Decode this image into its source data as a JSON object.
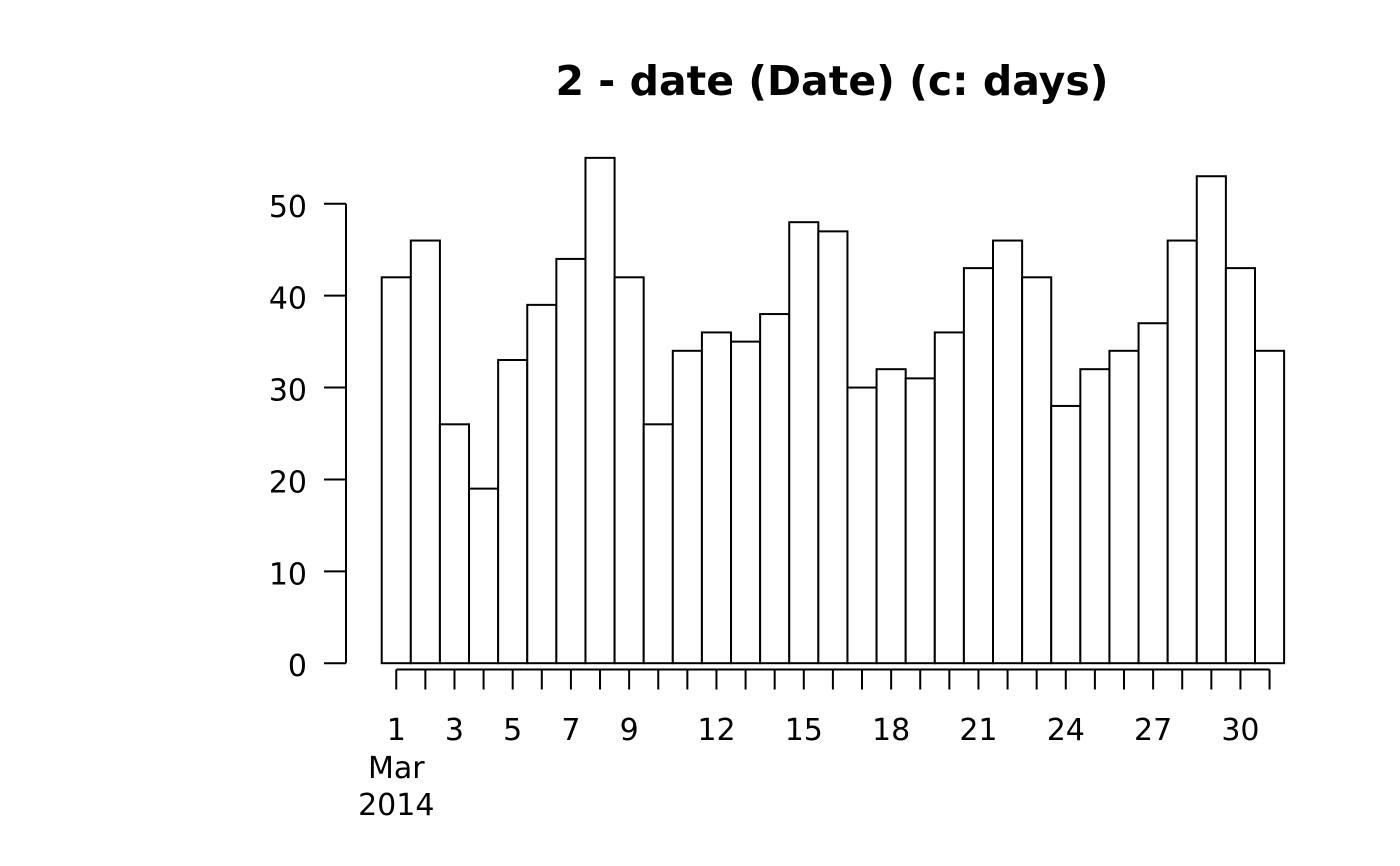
{
  "title": "2 - date (Date) (c: days)",
  "chart_data": {
    "type": "bar",
    "chart_kind": "histogram",
    "title": "2 - date (Date) (c: days)",
    "xlabel": "",
    "ylabel": "",
    "month_label": "Mar",
    "year_label": "2014",
    "categories": [
      1,
      2,
      3,
      4,
      5,
      6,
      7,
      8,
      9,
      10,
      11,
      12,
      13,
      14,
      15,
      16,
      17,
      18,
      19,
      20,
      21,
      22,
      23,
      24,
      25,
      26,
      27,
      28,
      29,
      30,
      31
    ],
    "values": [
      42,
      46,
      26,
      19,
      33,
      39,
      44,
      55,
      42,
      26,
      34,
      36,
      35,
      38,
      48,
      47,
      30,
      32,
      31,
      36,
      43,
      46,
      42,
      28,
      32,
      34,
      37,
      46,
      53,
      43,
      34
    ],
    "x_labeled_days": [
      1,
      3,
      5,
      7,
      9,
      12,
      15,
      18,
      21,
      24,
      27,
      30
    ],
    "y_ticks": [
      0,
      10,
      20,
      30,
      40,
      50
    ],
    "ylim": [
      0,
      55
    ],
    "grid": false,
    "legend": "none",
    "colors": {
      "background": "#ffffff",
      "bar_fill": "#ffffff",
      "bar_stroke": "#000000",
      "axis": "#000000",
      "text": "#000000"
    }
  }
}
